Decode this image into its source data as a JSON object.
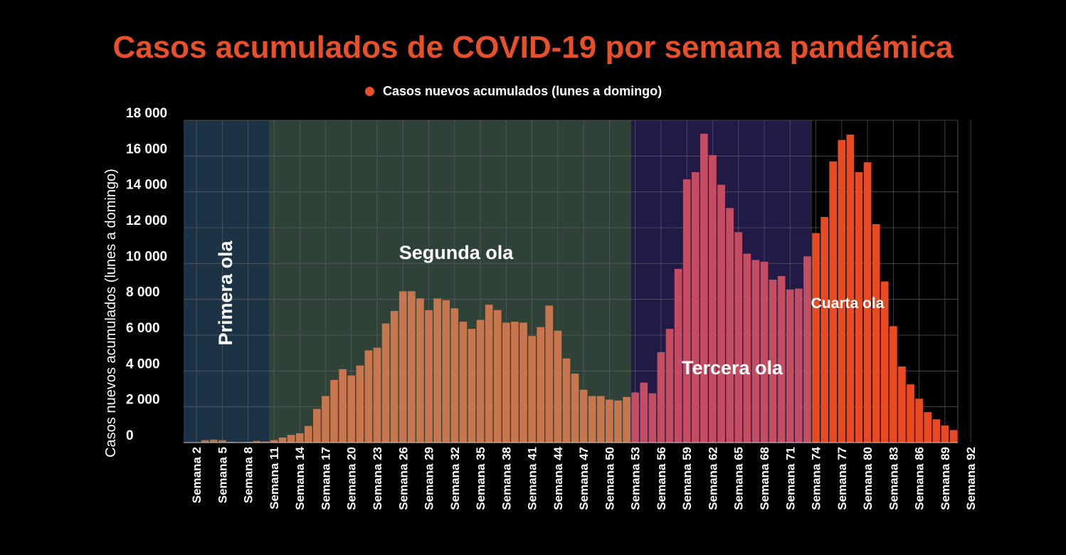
{
  "chart_data": {
    "type": "bar",
    "title": "Casos acumulados de COVID-19 por semana pandémica",
    "legend": "Casos nuevos acumulados (lunes a domingo)",
    "ylabel": "Casos nuevos acumulados (lunes a domingo)",
    "xlabel": "",
    "ylim": [
      0,
      18000
    ],
    "yticks": [
      0,
      2000,
      4000,
      6000,
      8000,
      10000,
      12000,
      14000,
      16000,
      18000
    ],
    "ytick_labels": [
      "0",
      "2 000",
      "4 000",
      "6 000",
      "8 000",
      "10 000",
      "12 000",
      "14 000",
      "16 000",
      "18 000"
    ],
    "week_prefix": "Semana",
    "first_week": 1,
    "xtick_labels": [
      "Semana 2",
      "Semana 5",
      "Semana 8",
      "Semana 11",
      "Semana 14",
      "Semana 17",
      "Semana 20",
      "Semana 23",
      "Semana 26",
      "Semana 29",
      "Semana 32",
      "Semana 35",
      "Semana 38",
      "Semana 41",
      "Semana 44",
      "Semana 47",
      "Semana 50",
      "Semana 53",
      "Semana 56",
      "Semana 59",
      "Semana 62",
      "Semana 65",
      "Semana 68",
      "Semana 71",
      "Semana 74",
      "Semana 77",
      "Semana 80",
      "Semana 83",
      "Semana 86",
      "Semana 89",
      "Semana 92"
    ],
    "values": [
      0,
      10,
      140,
      170,
      140,
      40,
      30,
      40,
      90,
      60,
      140,
      280,
      430,
      520,
      930,
      1880,
      2600,
      3500,
      4100,
      3750,
      4300,
      5150,
      5300,
      6650,
      7350,
      8450,
      8450,
      8050,
      7400,
      8050,
      7950,
      7500,
      6750,
      6350,
      6850,
      7700,
      7400,
      6700,
      6750,
      6700,
      5950,
      6450,
      7650,
      6250,
      4700,
      3850,
      2950,
      2600,
      2600,
      2400,
      2350,
      2550,
      2800,
      3350,
      2750,
      5050,
      6350,
      9700,
      14700,
      15100,
      17250,
      16050,
      14400,
      13100,
      11750,
      10550,
      10200,
      10100,
      9100,
      9300,
      8550,
      8600,
      10400,
      11700,
      12600,
      15700,
      16900,
      17200,
      15100,
      15650,
      12200,
      9000,
      6500,
      4250,
      3250,
      2450,
      1700,
      1300,
      950,
      700
    ],
    "waves": [
      {
        "name": "Primera ola",
        "start_week": 1,
        "end_week": 10,
        "color": "#1c3346",
        "bar_color": "#a8714f"
      },
      {
        "name": "Segunda ola",
        "start_week": 11,
        "end_week": 52,
        "color": "#2f4237",
        "bar_color": "#c8764e"
      },
      {
        "name": "Tercera ola",
        "start_week": 53,
        "end_week": 73,
        "color": "#221a46",
        "bar_color": "#c44d62"
      },
      {
        "name": "Cuarta ola",
        "start_week": 74,
        "end_week": 90,
        "color": "#000000",
        "bar_color": "#e84b24"
      }
    ],
    "colors": {
      "title": "#e8502a",
      "legend_dot": "#e8502a",
      "grid": "#5e6266",
      "text": "#ffffff"
    }
  }
}
